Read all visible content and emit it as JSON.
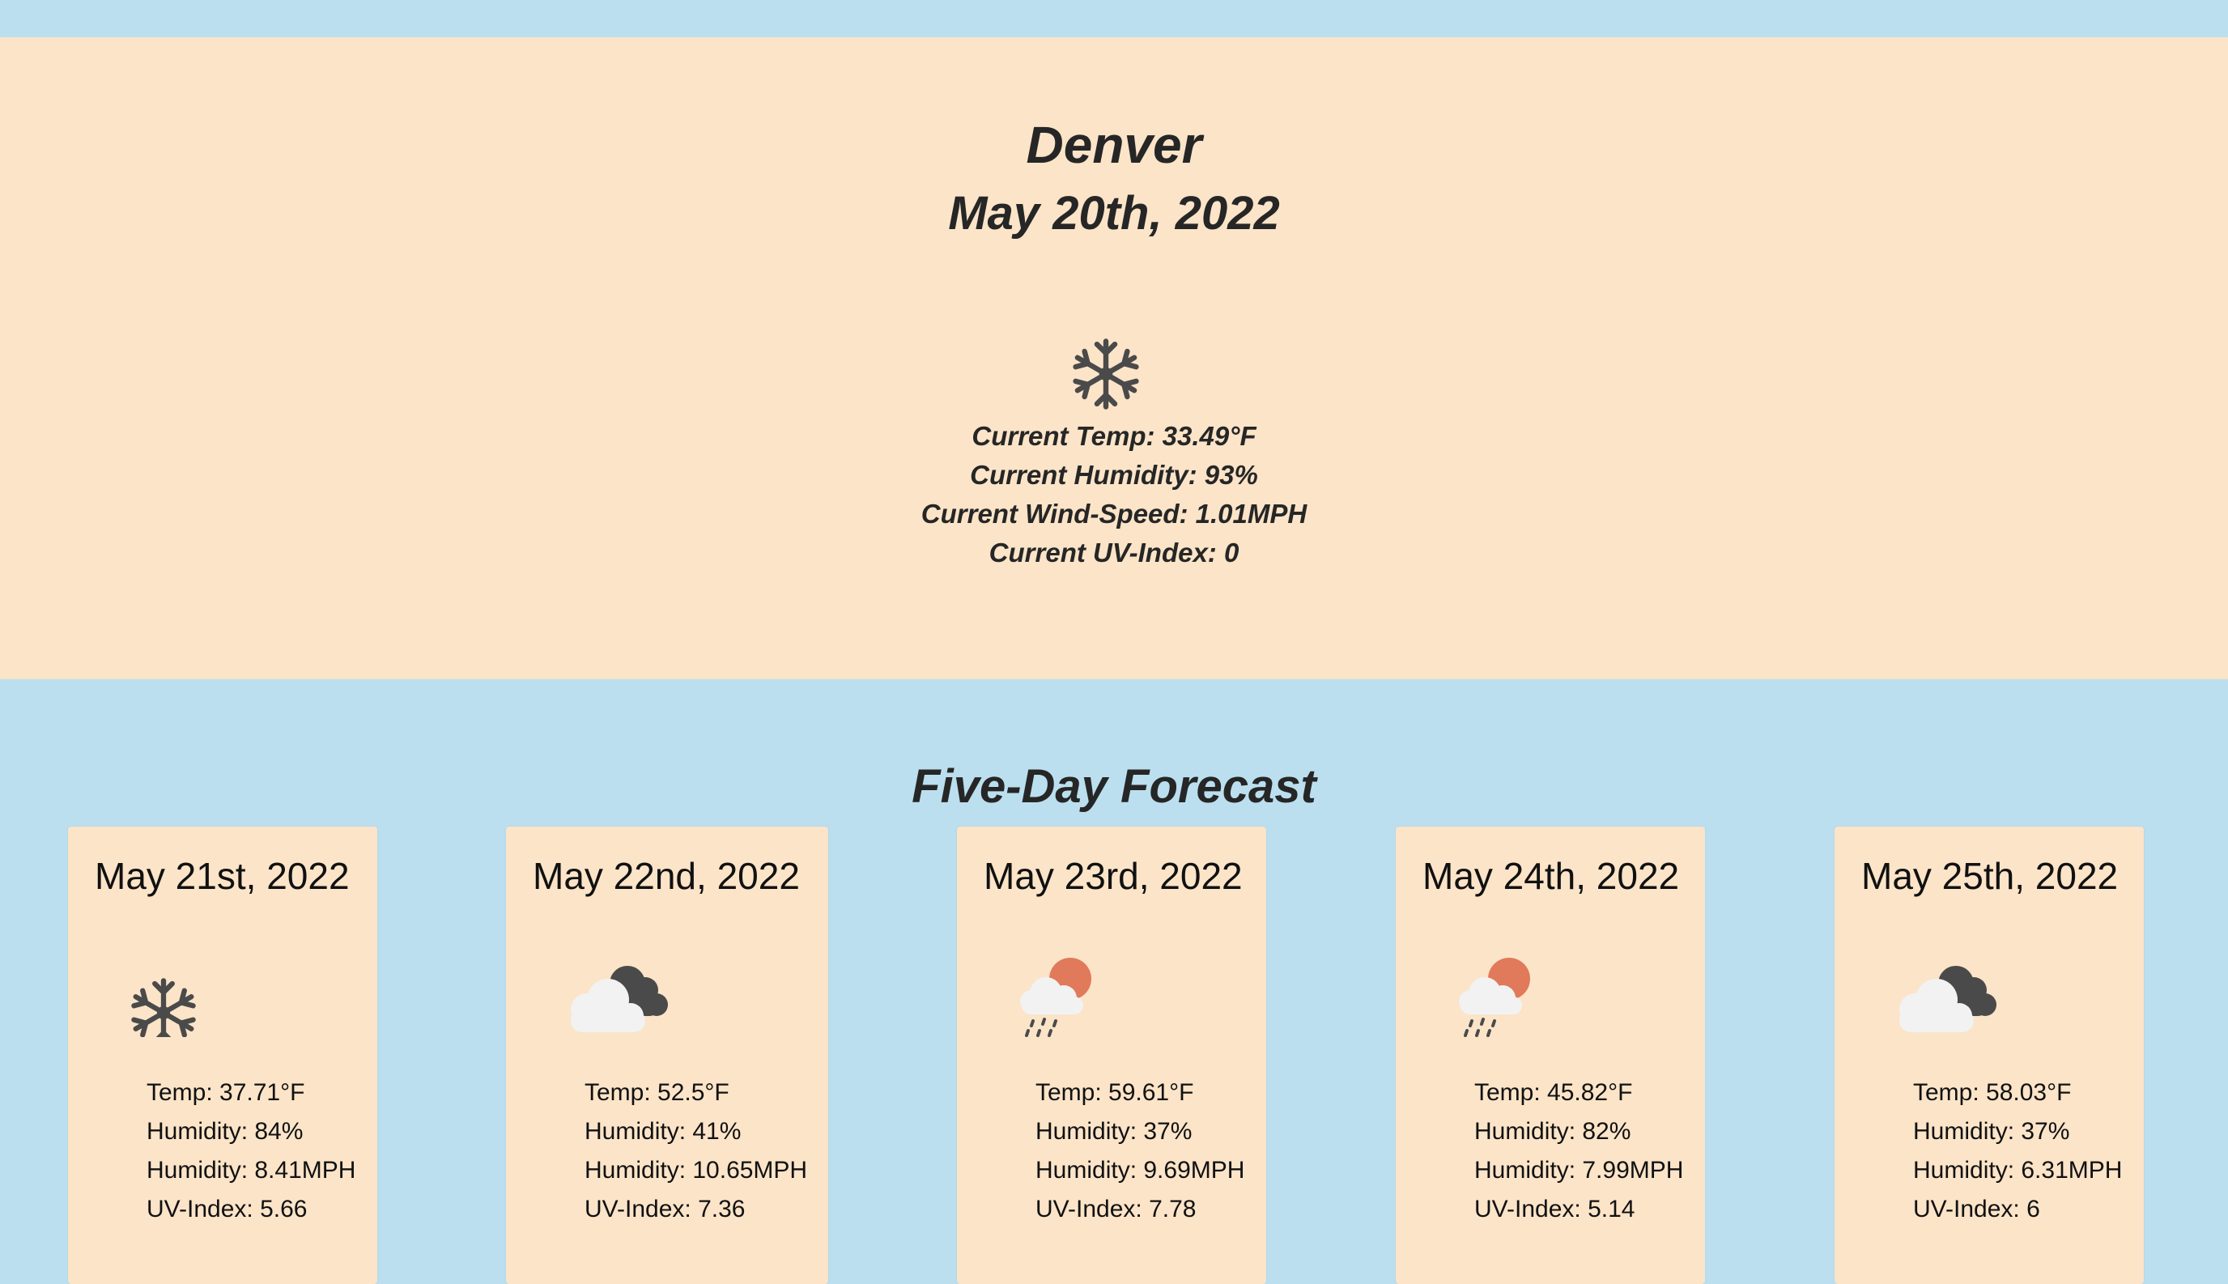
{
  "current": {
    "city": "Denver",
    "date": "May 20th, 2022",
    "icon": "snowflake-icon",
    "temp": "Current Temp: 33.49°F",
    "humidity": "Current Humidity: 93%",
    "wind": "Current Wind-Speed: 1.01MPH",
    "uv": "Current UV-Index: 0"
  },
  "forecast": {
    "title": "Five-Day Forecast",
    "days": [
      {
        "date": "May 21st, 2022",
        "icon": "snowflake-icon",
        "temp": "Temp: 37.71°F",
        "humidity": "Humidity: 84%",
        "wind": "Humidity: 8.41MPH",
        "uv": "UV-Index: 5.66"
      },
      {
        "date": "May 22nd, 2022",
        "icon": "cloudy-icon",
        "temp": "Temp: 52.5°F",
        "humidity": "Humidity: 41%",
        "wind": "Humidity: 10.65MPH",
        "uv": "UV-Index: 7.36"
      },
      {
        "date": "May 23rd, 2022",
        "icon": "sun-rain-icon",
        "temp": "Temp: 59.61°F",
        "humidity": "Humidity: 37%",
        "wind": "Humidity: 9.69MPH",
        "uv": "UV-Index: 7.78"
      },
      {
        "date": "May 24th, 2022",
        "icon": "sun-rain-icon",
        "temp": "Temp: 45.82°F",
        "humidity": "Humidity: 82%",
        "wind": "Humidity: 7.99MPH",
        "uv": "UV-Index: 5.14"
      },
      {
        "date": "May 25th, 2022",
        "icon": "cloudy-icon",
        "temp": "Temp: 58.03°F",
        "humidity": "Humidity: 37%",
        "wind": "Humidity: 6.31MPH",
        "uv": "UV-Index: 6"
      }
    ]
  },
  "colors": {
    "background": "#bbdfee",
    "panel": "#fbe4c8",
    "text": "#262626",
    "icon_dark": "#4a4a4a",
    "cloud_light": "#f2f2f2",
    "sun": "#e07a5a"
  }
}
